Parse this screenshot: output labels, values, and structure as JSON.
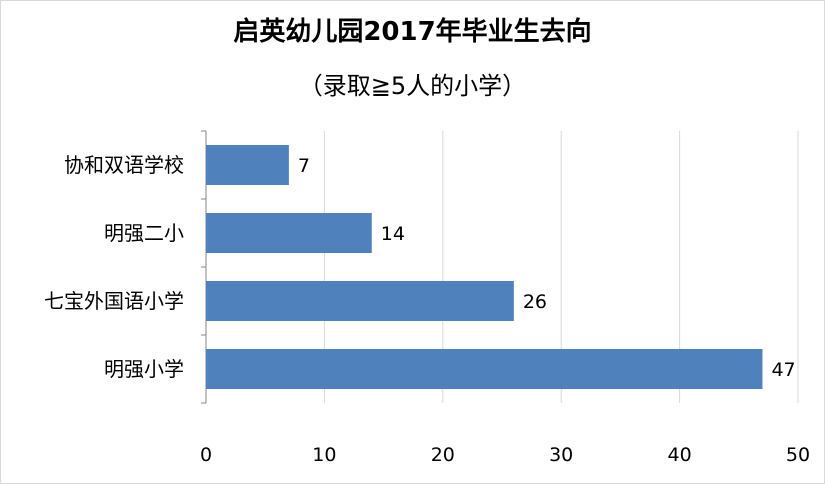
{
  "chart_data": {
    "type": "bar",
    "orientation": "horizontal",
    "title": "启英幼儿园2017年毕业生去向",
    "subtitle": "（录取≧5人的小学）",
    "categories": [
      "协和双语学校",
      "明强二小",
      "七宝外国语小学",
      "明强小学"
    ],
    "values": [
      7,
      14,
      26,
      47
    ],
    "xlim": [
      0,
      50
    ],
    "xticks": [
      0,
      10,
      20,
      30,
      40,
      50
    ],
    "xlabel": "",
    "ylabel": "",
    "grid": "vertical",
    "legend": "none",
    "data_labels": true,
    "bar_color": "#4f81bd",
    "grid_color": "#d9d9d9"
  }
}
